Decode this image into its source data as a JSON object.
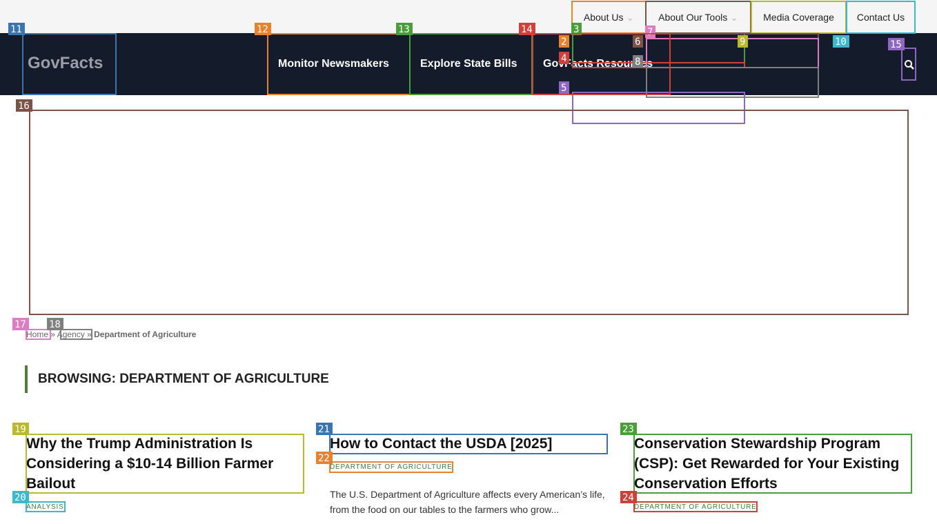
{
  "top_nav": [
    "About Us",
    "About Our Tools",
    "Media Coverage",
    "Contact Us"
  ],
  "logo": "GovFacts",
  "main_nav": [
    "Monitor Newsmakers",
    "Explore State Bills",
    "GovFacts Resources"
  ],
  "breadcrumb": {
    "items": [
      "Home",
      "Agency",
      "Department of Agriculture"
    ],
    "separator": "»"
  },
  "heading": "BROWSING: DEPARTMENT OF AGRICULTURE",
  "articles": [
    {
      "title": "Why the Trump Administration Is Considering a $10-14 Billion Farmer Bailout",
      "category": "ANALYSIS"
    },
    {
      "title": "How to Contact the USDA [2025]",
      "category": "DEPARTMENT OF AGRICULTURE",
      "excerpt": "The U.S. Department of Agriculture affects every American’s life, from the food on our tables to the farmers who grow..."
    },
    {
      "title": "Conservation Stewardship Program (CSP): Get Rewarded for Your Existing Conservation Efforts",
      "category": "DEPARTMENT OF AGRICULTURE"
    }
  ],
  "annotations": [
    {
      "label": "2",
      "color": "#e8822e"
    },
    {
      "label": "3",
      "color": "#4a9e3a"
    },
    {
      "label": "4",
      "color": "#d0403a"
    },
    {
      "label": "5",
      "color": "#8e67c2"
    },
    {
      "label": "6",
      "color": "#7d5348"
    },
    {
      "label": "7",
      "color": "#dd7cc3"
    },
    {
      "label": "8",
      "color": "#7f7f7f"
    },
    {
      "label": "9",
      "color": "#b8ba2c"
    },
    {
      "label": "10",
      "color": "#3cb8cc"
    },
    {
      "label": "11",
      "color": "#3b75b0"
    },
    {
      "label": "12",
      "color": "#e8822e"
    },
    {
      "label": "13",
      "color": "#4a9e3a"
    },
    {
      "label": "14",
      "color": "#d0403a"
    },
    {
      "label": "15",
      "color": "#8e67c2"
    },
    {
      "label": "16",
      "color": "#7d5348"
    },
    {
      "label": "17",
      "color": "#dd7cc3"
    },
    {
      "label": "18",
      "color": "#7f7f7f"
    },
    {
      "label": "19",
      "color": "#b8ba2c"
    },
    {
      "label": "20",
      "color": "#3cb8cc"
    },
    {
      "label": "21",
      "color": "#3b75b0"
    },
    {
      "label": "22",
      "color": "#e8822e"
    },
    {
      "label": "23",
      "color": "#4a9e3a"
    },
    {
      "label": "24",
      "color": "#d0403a"
    }
  ]
}
